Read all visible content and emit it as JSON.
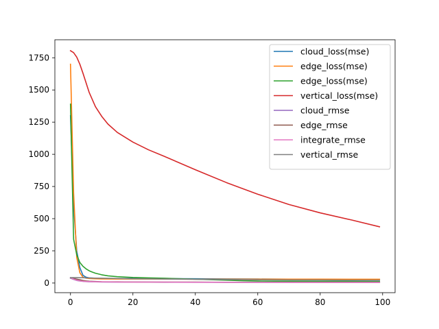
{
  "chart_data": {
    "type": "line",
    "xlim": [
      -5,
      104
    ],
    "ylim": [
      -75,
      1890
    ],
    "xticks": [
      0,
      20,
      40,
      60,
      80,
      100
    ],
    "yticks": [
      0,
      250,
      500,
      750,
      1000,
      1250,
      1500,
      1750
    ],
    "grid": false,
    "legend_position": "top-right",
    "series": [
      {
        "name": "cloud_loss(mse)",
        "color": "#1f77b4",
        "x": [
          0,
          1,
          2,
          3,
          4,
          5,
          6,
          8,
          10,
          15,
          20,
          30,
          40,
          50,
          60,
          70,
          80,
          90,
          99
        ],
        "y": [
          1300,
          600,
          250,
          120,
          60,
          45,
          40,
          37,
          36,
          35,
          35,
          34,
          33,
          32,
          31,
          30,
          29,
          28,
          27
        ]
      },
      {
        "name": "edge_loss(mse)",
        "color": "#ff7f0e",
        "x": [
          0,
          1,
          2,
          3,
          4,
          5,
          6,
          8,
          10,
          15,
          20,
          30,
          40,
          50,
          60,
          70,
          80,
          90,
          99
        ],
        "y": [
          1700,
          700,
          200,
          80,
          45,
          38,
          35,
          33,
          32,
          31,
          31,
          31,
          30,
          30,
          30,
          30,
          30,
          29,
          29
        ]
      },
      {
        "name": "edge_loss(mse)",
        "color": "#2ca02c",
        "x": [
          0,
          1,
          2,
          3,
          4,
          5,
          6,
          7,
          8,
          10,
          12,
          15,
          20,
          25,
          30,
          40,
          50,
          55,
          60,
          70,
          80,
          90,
          99
        ],
        "y": [
          1390,
          340,
          220,
          160,
          130,
          110,
          95,
          85,
          76,
          64,
          56,
          49,
          43,
          40,
          37,
          30,
          22,
          18,
          15,
          14,
          13,
          13,
          12
        ]
      },
      {
        "name": "vertical_loss(mse)",
        "color": "#d62728",
        "x": [
          0,
          1,
          2,
          3,
          4,
          5,
          6,
          8,
          10,
          12,
          15,
          20,
          25,
          30,
          40,
          50,
          60,
          70,
          80,
          90,
          99
        ],
        "y": [
          1805,
          1790,
          1755,
          1700,
          1630,
          1555,
          1480,
          1370,
          1295,
          1235,
          1170,
          1095,
          1035,
          985,
          880,
          780,
          690,
          610,
          545,
          490,
          437
        ]
      },
      {
        "name": "cloud_rmse",
        "color": "#9467bd",
        "x": [
          0,
          1,
          2,
          3,
          4,
          5,
          6,
          8,
          10,
          15,
          20,
          30,
          40,
          50,
          60,
          70,
          80,
          90,
          99
        ],
        "y": [
          38,
          28,
          20,
          16,
          13,
          11,
          10,
          9,
          8,
          7,
          7,
          6,
          6,
          5,
          5,
          5,
          5,
          5,
          5
        ]
      },
      {
        "name": "edge_rmse",
        "color": "#8c564b",
        "x": [
          0,
          1,
          2,
          3,
          4,
          5,
          6,
          8,
          10,
          15,
          20,
          30,
          40,
          50,
          60,
          70,
          80,
          90,
          99
        ],
        "y": [
          40,
          35,
          30,
          25,
          20,
          16,
          14,
          12,
          10,
          9,
          8,
          7,
          7,
          6,
          6,
          6,
          5,
          5,
          5
        ]
      },
      {
        "name": "integrate_rmse",
        "color": "#e377c2",
        "x": [
          0,
          1,
          2,
          3,
          4,
          5,
          6,
          8,
          10,
          15,
          20,
          30,
          40,
          50,
          60,
          70,
          80,
          90,
          99
        ],
        "y": [
          42,
          30,
          22,
          17,
          14,
          12,
          11,
          10,
          9,
          8,
          7,
          7,
          6,
          6,
          6,
          5,
          5,
          5,
          5
        ]
      },
      {
        "name": "vertical_rmse",
        "color": "#7f7f7f",
        "x": [
          0,
          1,
          2,
          3,
          4,
          5,
          6,
          8,
          10,
          15,
          20,
          30,
          40,
          50,
          60,
          70,
          80,
          90,
          99
        ],
        "y": [
          42,
          42,
          42,
          41,
          41,
          40,
          39,
          38,
          37,
          35,
          33,
          31,
          29,
          27,
          25,
          24,
          23,
          22,
          21
        ]
      }
    ]
  }
}
